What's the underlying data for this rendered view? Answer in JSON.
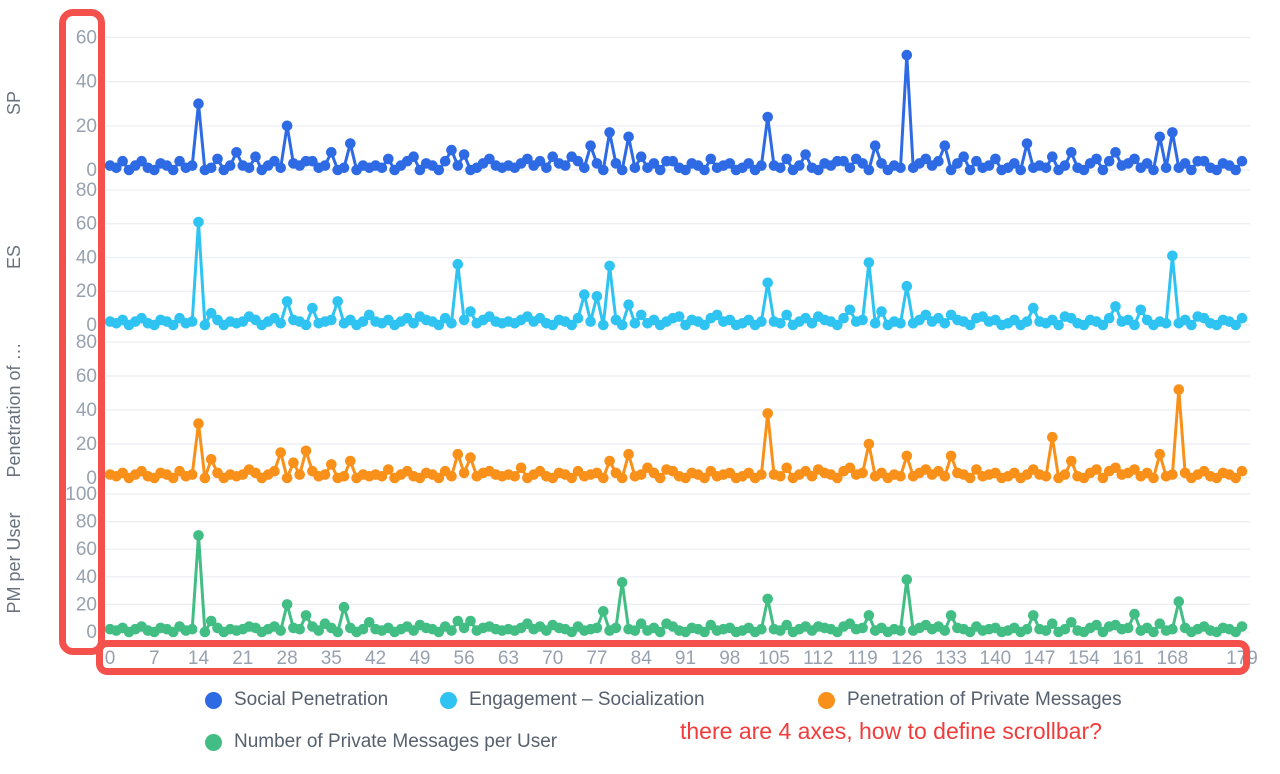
{
  "annotations": {
    "note_text": "there are 4 axes, how to define scrollbar?",
    "note_color": "#f23c3c",
    "highlight_box_color": "#f4514c",
    "highlight_boxes": [
      "around-all-four-y-axes",
      "around-x-axis"
    ]
  },
  "legend": [
    {
      "label": "Social Penetration",
      "color": "#2d6ae3"
    },
    {
      "label": "Engagement – Socialization",
      "color": "#2fc3f2"
    },
    {
      "label": "Penetration of Private Messages",
      "color": "#f8901a"
    },
    {
      "label": "Number of Private Messages per User",
      "color": "#42be85"
    }
  ],
  "chart_data": {
    "type": "line",
    "title": "",
    "xlabel": "",
    "x_range": [
      0,
      179
    ],
    "n_points": 180,
    "x_tick_labels": [
      0,
      7,
      14,
      21,
      28,
      35,
      42,
      49,
      56,
      63,
      70,
      77,
      84,
      91,
      98,
      105,
      112,
      119,
      126,
      133,
      140,
      147,
      154,
      161,
      168,
      179
    ],
    "grid": true,
    "legend_position": "bottom",
    "marker": "circle",
    "baseline_pattern": [
      2,
      1,
      3,
      0,
      2,
      4,
      1,
      0,
      3,
      2,
      0,
      4,
      1,
      2,
      3,
      0,
      1,
      3,
      0,
      2,
      1
    ],
    "subplots": [
      {
        "ylabel": "SP",
        "series_name": "Social Penetration",
        "color": "#2d6ae3",
        "yticks": [
          60,
          40,
          20,
          0
        ],
        "ylim": [
          -6,
          64
        ],
        "peaks": {
          "2": 4,
          "14": 30,
          "17": 5,
          "20": 8,
          "23": 6,
          "28": 20,
          "31": 4,
          "35": 8,
          "38": 12,
          "44": 5,
          "48": 6,
          "54": 9,
          "56": 7,
          "60": 5,
          "66": 5,
          "70": 6,
          "73": 6,
          "76": 11,
          "79": 17,
          "82": 15,
          "84": 6,
          "88": 4,
          "95": 5,
          "104": 24,
          "107": 5,
          "110": 7,
          "115": 4,
          "118": 5,
          "121": 11,
          "126": 52,
          "129": 5,
          "132": 11,
          "135": 6,
          "140": 5,
          "145": 12,
          "149": 6,
          "152": 8,
          "156": 5,
          "159": 8,
          "162": 5,
          "166": 15,
          "168": 17,
          "172": 4
        }
      },
      {
        "ylabel": "ES",
        "series_name": "Engagement – Socialization",
        "color": "#2fc3f2",
        "yticks": [
          80,
          60,
          40,
          20,
          0
        ],
        "ylim": [
          -6,
          85
        ],
        "peaks": {
          "14": 61,
          "16": 7,
          "22": 5,
          "28": 14,
          "32": 10,
          "36": 14,
          "41": 6,
          "49": 5,
          "55": 36,
          "57": 8,
          "60": 5,
          "66": 5,
          "75": 18,
          "77": 17,
          "79": 35,
          "82": 12,
          "84": 6,
          "90": 5,
          "96": 6,
          "104": 25,
          "107": 6,
          "112": 5,
          "117": 9,
          "120": 37,
          "122": 8,
          "126": 23,
          "129": 6,
          "133": 6,
          "138": 5,
          "146": 10,
          "151": 5,
          "159": 11,
          "163": 9,
          "168": 41,
          "172": 5
        }
      },
      {
        "ylabel": "Penetration of …",
        "series_name": "Penetration of Private Messages",
        "color": "#f8901a",
        "yticks": [
          80,
          60,
          40,
          20,
          0
        ],
        "ylim": [
          -6,
          85
        ],
        "peaks": {
          "14": 32,
          "16": 11,
          "22": 5,
          "27": 15,
          "29": 9,
          "31": 16,
          "35": 8,
          "38": 10,
          "44": 5,
          "55": 14,
          "57": 12,
          "60": 4,
          "65": 6,
          "79": 10,
          "82": 14,
          "85": 6,
          "88": 5,
          "95": 4,
          "104": 38,
          "107": 6,
          "112": 5,
          "117": 6,
          "120": 20,
          "126": 13,
          "129": 5,
          "133": 13,
          "137": 5,
          "146": 5,
          "149": 24,
          "152": 10,
          "156": 5,
          "159": 6,
          "162": 5,
          "166": 14,
          "169": 52,
          "173": 4
        }
      },
      {
        "ylabel": "PM per User",
        "series_name": "Number of Private Messages per User",
        "color": "#42be85",
        "yticks": [
          100,
          80,
          60,
          40,
          20,
          0
        ],
        "ylim": [
          -7,
          106
        ],
        "peaks": {
          "14": 70,
          "16": 8,
          "22": 4,
          "28": 20,
          "31": 12,
          "34": 6,
          "37": 18,
          "41": 7,
          "49": 5,
          "55": 8,
          "57": 8,
          "60": 4,
          "66": 6,
          "70": 5,
          "78": 15,
          "81": 36,
          "84": 6,
          "88": 6,
          "95": 5,
          "104": 24,
          "107": 5,
          "112": 4,
          "117": 6,
          "120": 12,
          "126": 38,
          "129": 5,
          "133": 12,
          "137": 4,
          "146": 12,
          "149": 6,
          "152": 7,
          "156": 5,
          "159": 5,
          "162": 13,
          "166": 6,
          "169": 22,
          "173": 4
        }
      }
    ],
    "style": {
      "gridline_color": "#eceef2",
      "tick_label_color": "#98a1af",
      "axis_title_color": "#68727f"
    }
  }
}
